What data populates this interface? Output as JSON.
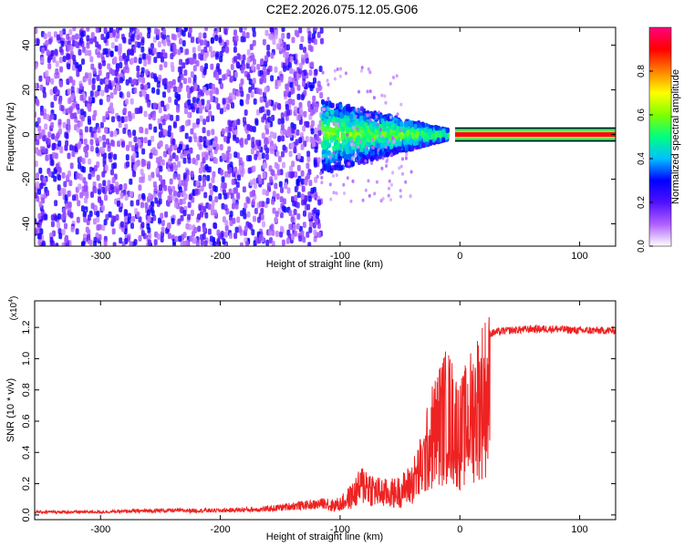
{
  "figure_title": "C2E2.2026.075.12.05.G06",
  "chart_data": [
    {
      "type": "heatmap",
      "title": "C2E2.2026.075.12.05.G06",
      "xlabel": "Height of straight line (km)",
      "ylabel": "Frequency (Hz)",
      "xlim": [
        -355,
        130
      ],
      "ylim": [
        -50,
        48
      ],
      "xticks": [
        -300,
        -200,
        -100,
        0,
        100
      ],
      "yticks": [
        -40,
        -20,
        0,
        20,
        40
      ],
      "colorbar": {
        "label": "Normalized spectral amplitude",
        "range": [
          0,
          1
        ],
        "ticks": [
          0.0,
          0.2,
          0.4,
          0.6,
          0.8
        ],
        "tick_labels": [
          "0.0",
          "0.2",
          "0.4",
          "0.6",
          "0.8"
        ],
        "colors": [
          "#ffffff",
          "#b060ff",
          "#5010ff",
          "#0000ff",
          "#00c0ff",
          "#00ff80",
          "#80ff00",
          "#ffff00",
          "#ff8000",
          "#ff0000",
          "#ff0080"
        ]
      },
      "regions": [
        {
          "name": "broadband noise",
          "x_range": [
            -355,
            -115
          ],
          "frequency_range": [
            -50,
            48
          ],
          "amplitude": 0.1
        },
        {
          "name": "converging signal",
          "x_range": [
            -115,
            -10
          ],
          "frequency_range": [
            -12,
            12
          ],
          "amplitude": 0.45
        },
        {
          "name": "narrow carrier",
          "x_range": [
            0,
            130
          ],
          "frequency_range": [
            -1,
            1
          ],
          "amplitude": 0.95
        }
      ]
    },
    {
      "type": "line",
      "xlabel": "Height of straight line (km)",
      "ylabel": "SNR (10 * v/v)",
      "y_scale_label": "(x10",
      "y_scale_exponent": "4",
      "xlim": [
        -355,
        130
      ],
      "ylim": [
        -0.03,
        1.37
      ],
      "xticks": [
        -300,
        -200,
        -100,
        0,
        100
      ],
      "yticks": [
        0.0,
        0.2,
        0.4,
        0.6,
        0.8,
        1.0,
        1.2
      ],
      "ytick_labels": [
        "0.0",
        "0.2",
        "0.4",
        "0.6",
        "0.8",
        "1.0",
        "1.2"
      ],
      "color": "#ee2222",
      "series": [
        {
          "name": "SNR",
          "x": [
            -355,
            -300,
            -250,
            -200,
            -160,
            -140,
            -120,
            -100,
            -90,
            -80,
            -70,
            -60,
            -50,
            -40,
            -35,
            -30,
            -25,
            -20,
            -15,
            -10,
            -5,
            0,
            5,
            10,
            15,
            20,
            25,
            30,
            40,
            60,
            80,
            100,
            130
          ],
          "y": [
            0.02,
            0.02,
            0.03,
            0.03,
            0.04,
            0.06,
            0.07,
            0.1,
            0.18,
            0.3,
            0.22,
            0.2,
            0.22,
            0.3,
            0.4,
            0.5,
            0.7,
            0.8,
            0.9,
            0.95,
            0.85,
            0.75,
            0.85,
            0.95,
            1.05,
            1.12,
            1.16,
            1.17,
            1.18,
            1.19,
            1.19,
            1.18,
            1.18
          ]
        }
      ]
    }
  ]
}
